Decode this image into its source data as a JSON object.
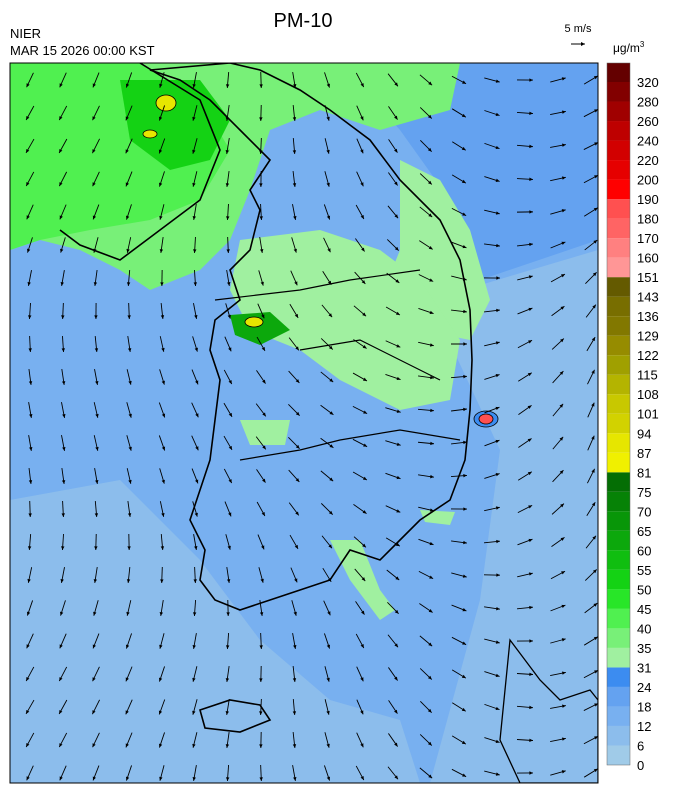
{
  "header": {
    "agency": "NIER",
    "datetime": "MAR 15 2026 00:00 KST",
    "title": "PM-10",
    "wind_scale": "5 m/s",
    "unit": "μg/m",
    "unit_sup": "3"
  },
  "legend": {
    "ticks": [
      "0",
      "6",
      "12",
      "18",
      "24",
      "31",
      "35",
      "40",
      "45",
      "50",
      "55",
      "60",
      "65",
      "70",
      "75",
      "81",
      "87",
      "94",
      "101",
      "108",
      "115",
      "122",
      "129",
      "136",
      "143",
      "151",
      "160",
      "170",
      "180",
      "190",
      "200",
      "220",
      "240",
      "260",
      "280",
      "320"
    ],
    "colors": [
      "#a0cbe8",
      "#8cbdec",
      "#78b0f0",
      "#64a2f0",
      "#3c8cf0",
      "#a0f0a0",
      "#78f078",
      "#50f050",
      "#28e628",
      "#14d214",
      "#10be10",
      "#0ca80c",
      "#089608",
      "#068206",
      "#046e04",
      "#f0f000",
      "#e6e600",
      "#d2d200",
      "#c8c800",
      "#b4b400",
      "#a0a000",
      "#968c00",
      "#827800",
      "#786e00",
      "#645a00",
      "#ff9696",
      "#ff8080",
      "#ff6464",
      "#ff5050",
      "#ff0000",
      "#e60000",
      "#d20000",
      "#be0000",
      "#a00000",
      "#820000",
      "#640000"
    ]
  }
}
